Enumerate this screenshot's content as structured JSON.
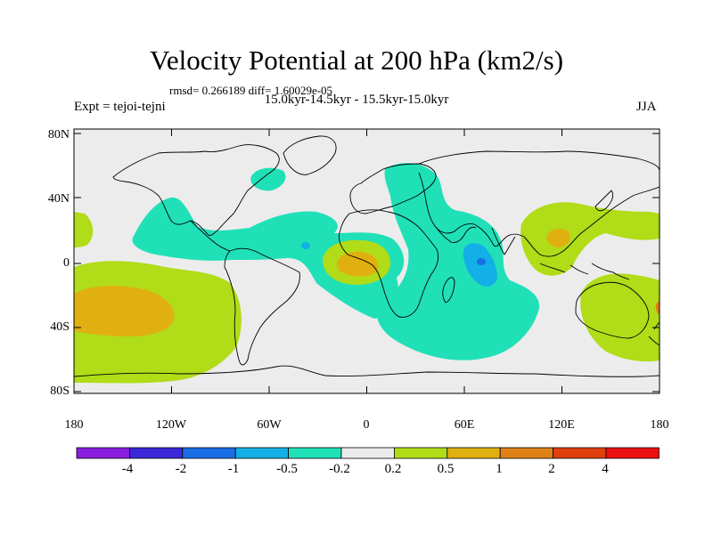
{
  "header": {
    "title": "Velocity Potential at 200 hPa (km2/s)",
    "stats": "rmsd= 0.266189 diff= 1.60029e-05",
    "period": "15.0kyr-14.5kyr - 15.5kyr-15.0kyr",
    "experiment": "Expt = tejoi-tejni",
    "season": "JJA"
  },
  "axes": {
    "y_ticks": [
      "80N",
      "40N",
      "0",
      "40S",
      "80S"
    ],
    "x_ticks": [
      "180",
      "120W",
      "60W",
      "0",
      "60E",
      "120E",
      "180"
    ]
  },
  "colorbar": {
    "labels": [
      "-4",
      "-2",
      "-1",
      "-0.5",
      "-0.2",
      "0.2",
      "0.5",
      "1",
      "2",
      "4"
    ],
    "colors": [
      "#8a1ee0",
      "#3c28d8",
      "#1a6ee6",
      "#12b0e6",
      "#20e0b8",
      "#ececec",
      "#b0dc18",
      "#e0b010",
      "#e08018",
      "#e04010",
      "#ec1010"
    ]
  },
  "colors": {
    "land_outline": "#000000",
    "background": "#ececec"
  }
}
